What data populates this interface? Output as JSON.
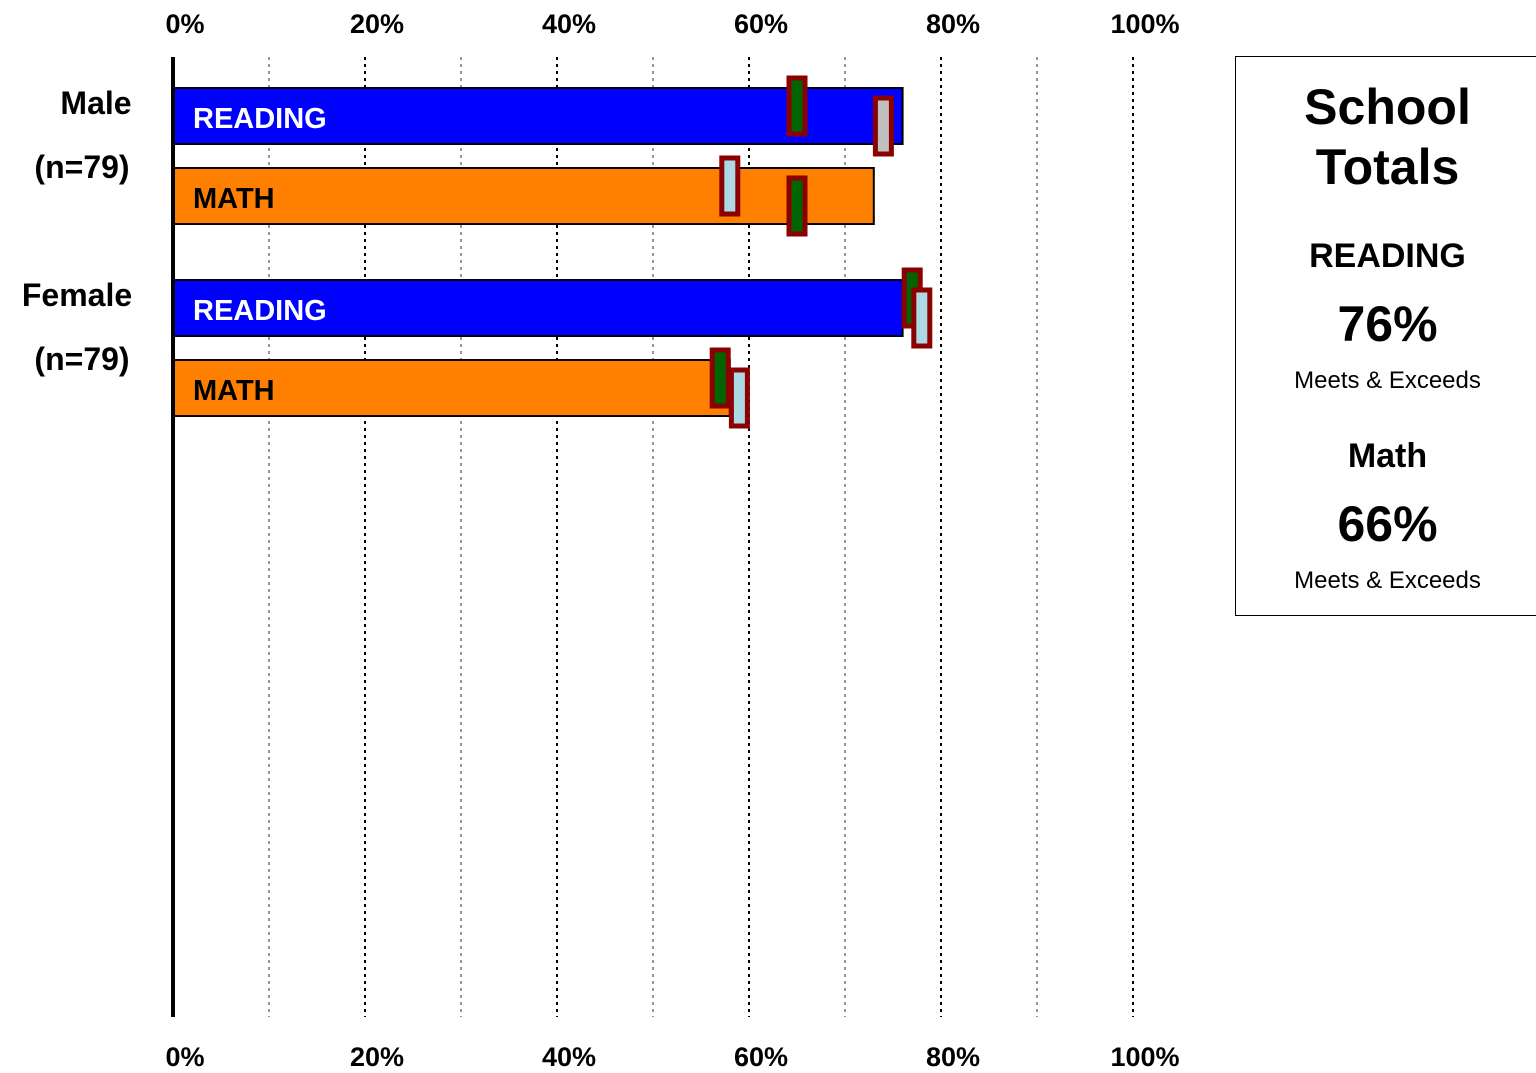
{
  "chart_data": {
    "type": "bar",
    "orientation": "horizontal",
    "xlim": [
      0,
      100
    ],
    "x_ticks": [
      "0%",
      "20%",
      "40%",
      "60%",
      "80%",
      "100%"
    ],
    "grid": true,
    "groups": [
      {
        "label": "Male",
        "n_label": "(n=79)",
        "bars": [
          {
            "label": "READING",
            "value": 76,
            "color": "#0000FF",
            "label_color": "#FFFFFF",
            "markers": [
              {
                "value": 65,
                "fill": "#006400"
              },
              {
                "value": 74,
                "fill": "#C0C0C0"
              }
            ]
          },
          {
            "label": "MATH",
            "value": 73,
            "color": "#FF8000",
            "label_color": "#000000",
            "markers": [
              {
                "value": 58,
                "fill": "#ADD8E6"
              },
              {
                "value": 65,
                "fill": "#006400"
              }
            ]
          }
        ]
      },
      {
        "label": "Female",
        "n_label": "(n=79)",
        "bars": [
          {
            "label": "READING",
            "value": 76,
            "color": "#0000FF",
            "label_color": "#FFFFFF",
            "markers": [
              {
                "value": 77,
                "fill": "#006400"
              },
              {
                "value": 78,
                "fill": "#ADD8E6"
              }
            ]
          },
          {
            "label": "MATH",
            "value": 58,
            "color": "#FF8000",
            "label_color": "#000000",
            "markers": [
              {
                "value": 57,
                "fill": "#006400"
              },
              {
                "value": 59,
                "fill": "#ADD8E6"
              }
            ]
          }
        ]
      }
    ],
    "marker_border_color": "#8B0000"
  },
  "totals": {
    "title_line1": "School",
    "title_line2": "Totals",
    "reading_label": "READING",
    "reading_value": "76%",
    "reading_note": "Meets & Exceeds",
    "math_label": "Math",
    "math_value": "66%",
    "math_note": "Meets & Exceeds"
  }
}
